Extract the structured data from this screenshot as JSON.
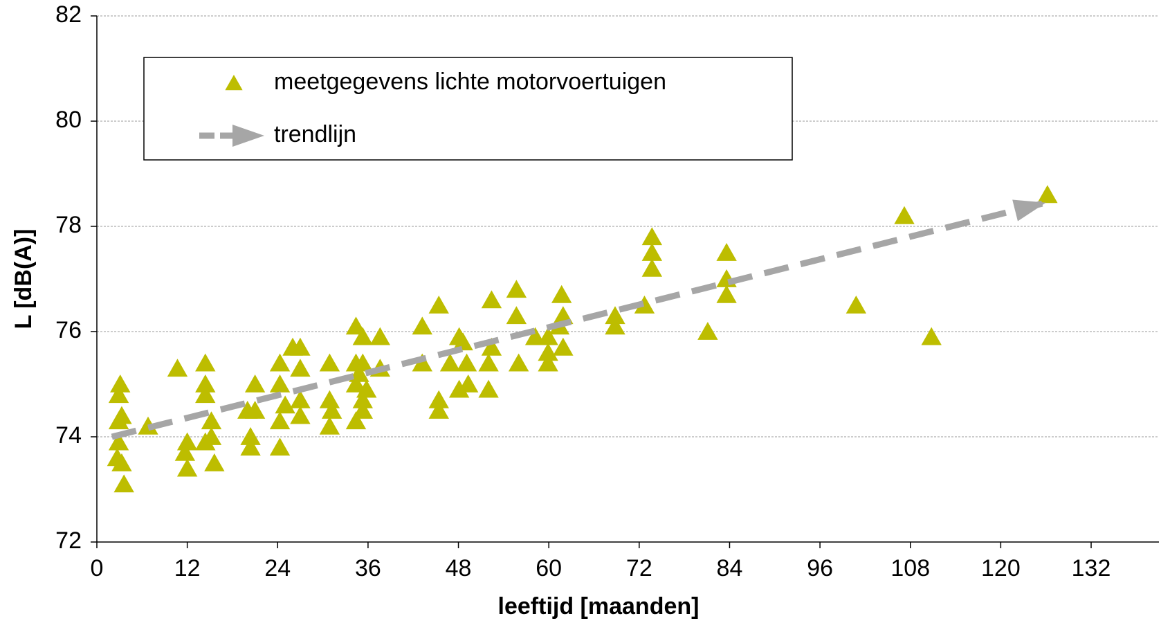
{
  "chart_data": {
    "type": "scatter",
    "xlabel": "leeftijd [maanden]",
    "ylabel": "L [dB(A)]",
    "xlim": [
      0,
      141
    ],
    "xticks": [
      0,
      12,
      24,
      36,
      48,
      60,
      72,
      84,
      96,
      108,
      120,
      132
    ],
    "ylim": [
      72,
      82
    ],
    "yticks": [
      72,
      74,
      76,
      78,
      80,
      82
    ],
    "grid": true,
    "legend": "upper left",
    "series": [
      {
        "name": "meetgegevens lichte motorvoertuigen",
        "color": "#bdbd00",
        "x": [
          2.9,
          3.1,
          2.9,
          3.3,
          2.7,
          3.3,
          3.6,
          2.9,
          6.8,
          10.7,
          12,
          12,
          11.7,
          14.4,
          14.4,
          14.4,
          15.2,
          15.2,
          15.6,
          14.4,
          20.4,
          20.4,
          21,
          21,
          20,
          24.3,
          24.3,
          24.3,
          24.3,
          25,
          26,
          27,
          27,
          27,
          27,
          30.9,
          30.9,
          30.9,
          31.2,
          34.4,
          34.4,
          34.4,
          34.4,
          35.3,
          35.3,
          35.3,
          35.3,
          35.8,
          34.8,
          37.6,
          37.6,
          43.2,
          43.2,
          45.4,
          45.4,
          45.4,
          46.9,
          48.1,
          48.1,
          48.6,
          49.3,
          49.1,
          52,
          52,
          52.4,
          52.4,
          55.7,
          55.7,
          56,
          58.2,
          59.9,
          59.9,
          59.9,
          61.7,
          61.9,
          61.9,
          61.4,
          68.8,
          68.8,
          72.7,
          73.7,
          73.7,
          73.7,
          81.1,
          83.6,
          83.6,
          83.6,
          100.8,
          107.2,
          110.8,
          126.2
        ],
        "values": [
          74.3,
          75.0,
          74.8,
          74.4,
          73.6,
          73.5,
          73.1,
          73.9,
          74.2,
          75.3,
          73.9,
          73.4,
          73.7,
          75.4,
          75.0,
          74.8,
          74.3,
          74.0,
          73.5,
          73.9,
          74.0,
          73.8,
          75.0,
          74.5,
          74.5,
          75.4,
          75.0,
          74.3,
          73.8,
          74.6,
          75.7,
          75.7,
          75.3,
          74.7,
          74.4,
          75.4,
          74.7,
          74.2,
          74.5,
          76.1,
          75.4,
          75.0,
          74.3,
          75.9,
          75.4,
          74.7,
          74.5,
          74.9,
          75.2,
          75.9,
          75.3,
          76.1,
          75.4,
          76.5,
          74.7,
          74.5,
          75.4,
          75.9,
          74.9,
          75.8,
          75.0,
          75.4,
          75.4,
          74.9,
          76.6,
          75.7,
          76.8,
          76.3,
          75.4,
          75.9,
          75.9,
          75.4,
          75.6,
          76.7,
          76.3,
          75.7,
          76.1,
          76.3,
          76.1,
          76.5,
          77.8,
          77.5,
          77.2,
          76.0,
          77.5,
          77.0,
          76.7,
          76.5,
          78.2,
          75.9,
          78.6
        ]
      },
      {
        "name": "trendlijn",
        "type": "line",
        "color": "#a6a6a6",
        "dashed": true,
        "x": [
          2,
          126
        ],
        "values": [
          74.0,
          78.45
        ]
      }
    ]
  }
}
